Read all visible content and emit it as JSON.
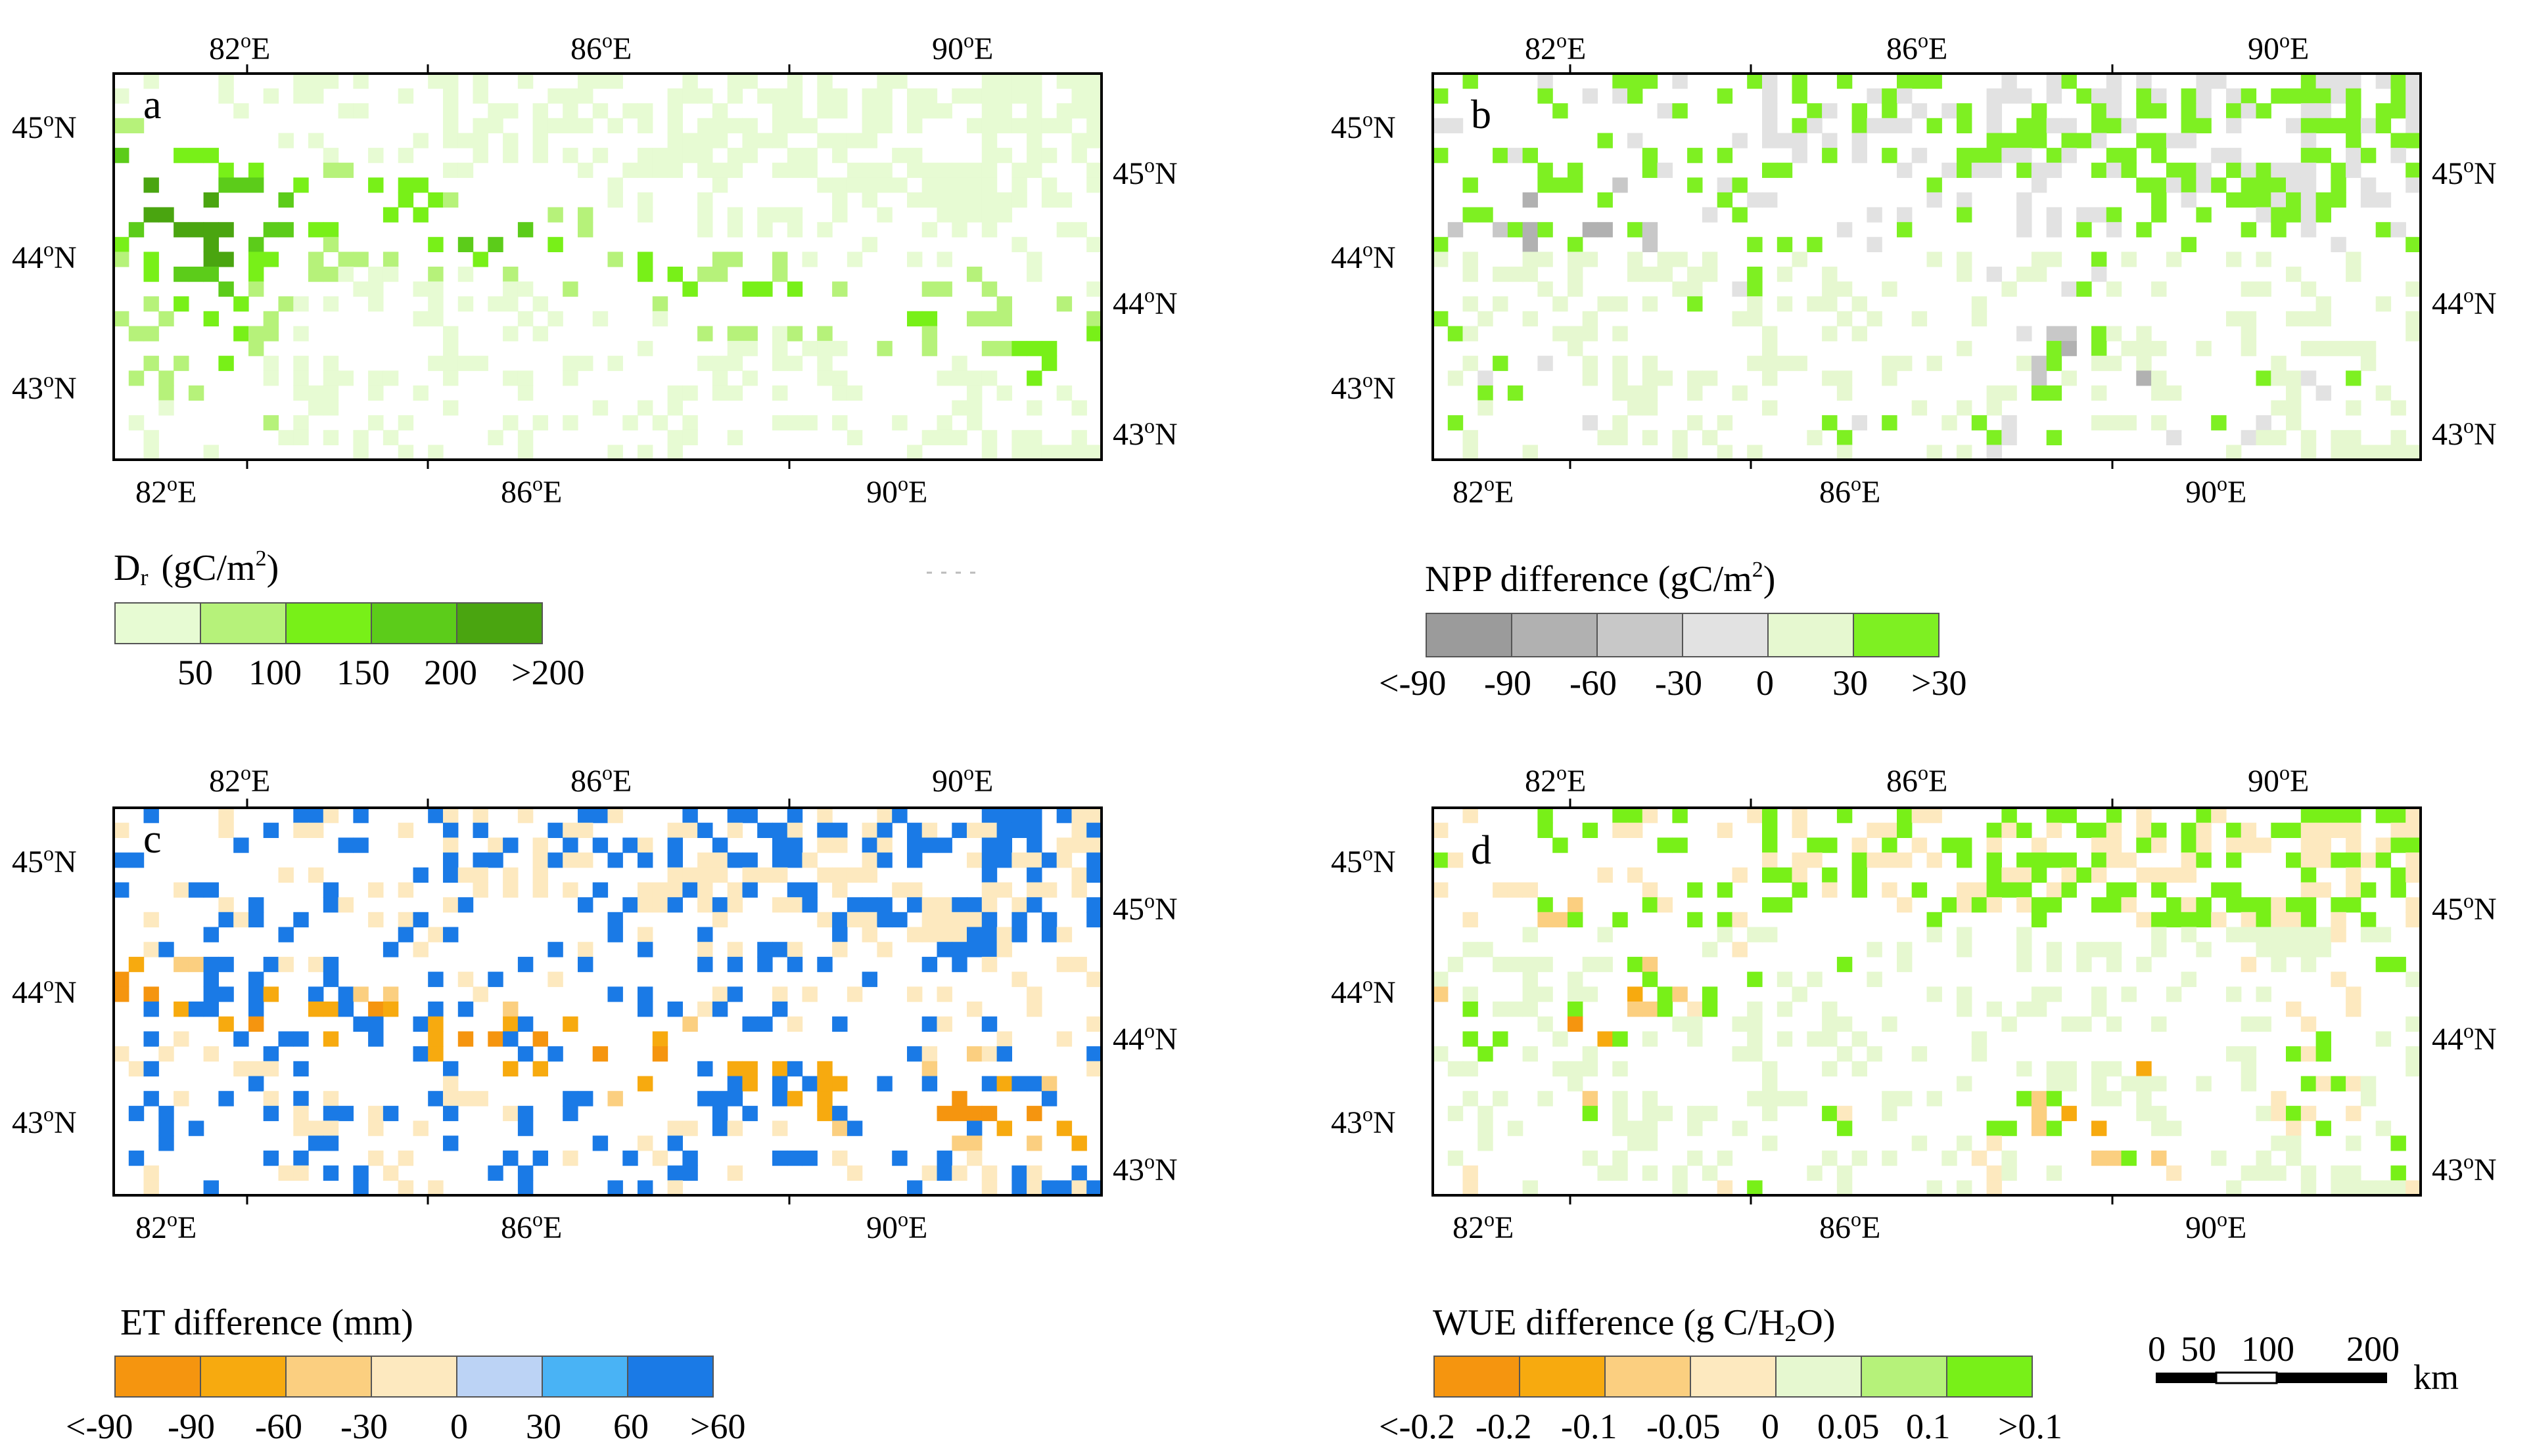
{
  "panels": [
    {
      "id": "a",
      "letter": "a",
      "top_ticks": [
        "82",
        "86",
        "90"
      ],
      "bottom_ticks": [
        "82",
        "86",
        "90"
      ],
      "left_ticks": [
        "45",
        "44",
        "43"
      ],
      "right_ticks": [
        "45",
        "44",
        "43"
      ],
      "legend": {
        "title_main": "D",
        "title_sub": "r",
        "title_rest_a": "(gC/m",
        "title_sup": "2",
        "title_rest_b": ")",
        "colors": [
          "#e7fbd3",
          "#b6f27a",
          "#78f018",
          "#5ccc1a",
          "#4aa510"
        ],
        "labels": [
          "50",
          "100",
          "150",
          "200",
          ">200"
        ]
      }
    },
    {
      "id": "b",
      "letter": "b",
      "top_ticks": [
        "82",
        "86",
        "90"
      ],
      "bottom_ticks": [
        "82",
        "86",
        "90"
      ],
      "left_ticks": [
        "45",
        "44",
        "43"
      ],
      "right_ticks": [
        "45",
        "44",
        "43"
      ],
      "legend": {
        "title_main": "NPP difference (gC/m",
        "title_sup": "2",
        "title_rest_b": ")",
        "colors": [
          "#9b9b9b",
          "#b1b1b1",
          "#c8c8c8",
          "#e2e2e2",
          "#e6f8d0",
          "#7ef022"
        ],
        "labels": [
          "<-90",
          "-90",
          "-60",
          "-30",
          "0",
          "30",
          ">30"
        ]
      }
    },
    {
      "id": "c",
      "letter": "c",
      "top_ticks": [
        "82",
        "86",
        "90"
      ],
      "bottom_ticks": [
        "82",
        "86",
        "90"
      ],
      "left_ticks": [
        "45",
        "44",
        "43"
      ],
      "right_ticks": [
        "45",
        "44",
        "43"
      ],
      "legend": {
        "title_main": "ET difference (mm)",
        "colors": [
          "#f5950f",
          "#f7aa0f",
          "#fbcf80",
          "#fde9bf",
          "#bcd3f5",
          "#49b3f5",
          "#1a7ae6"
        ],
        "labels": [
          "<-90",
          "-90",
          "-60",
          "-30",
          "0",
          "30",
          "60",
          ">60"
        ]
      }
    },
    {
      "id": "d",
      "letter": "d",
      "top_ticks": [
        "82",
        "86",
        "90"
      ],
      "bottom_ticks": [
        "82",
        "86",
        "90"
      ],
      "left_ticks": [
        "45",
        "44",
        "43"
      ],
      "right_ticks": [
        "45",
        "44",
        "43"
      ],
      "legend": {
        "title_main": "WUE difference (g C/H",
        "title_sub": "2",
        "title_rest_b": "O)",
        "colors": [
          "#f5950f",
          "#f7aa0f",
          "#fbcf80",
          "#fde9bf",
          "#e6f8d0",
          "#b6f27a",
          "#78f018"
        ],
        "labels": [
          "<-0.2",
          "-0.2",
          "-0.1",
          "-0.05",
          "0",
          "0.05",
          "0.1",
          ">0.1"
        ]
      }
    }
  ],
  "units": {
    "lon": "E",
    "lat": "N",
    "deg": "o"
  },
  "scale_bar": {
    "labels": [
      "0",
      "50",
      "100",
      "200"
    ],
    "unit": "km"
  }
}
